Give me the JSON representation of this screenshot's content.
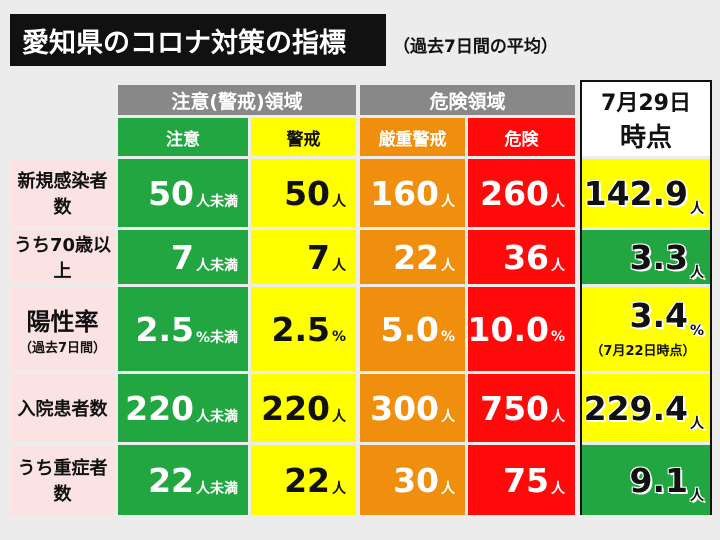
{
  "title": "愛知県のコロナ対策の指標",
  "subtitle": "（過去7日間の平均）",
  "header": {
    "group_caution": "注意(警戒)領域",
    "group_danger": "危険領域",
    "col_caution": "注意",
    "col_warning": "警戒",
    "col_severe": "厳重警戒",
    "col_danger": "危険",
    "date_line1": "7月29日",
    "date_line2": "時点"
  },
  "rows": [
    {
      "label": "新規感染者数",
      "caution": {
        "value": "50",
        "unit": "人未満"
      },
      "warning": {
        "value": "50",
        "unit": "人"
      },
      "severe": {
        "value": "160",
        "unit": "人"
      },
      "danger": {
        "value": "260",
        "unit": "人"
      },
      "current": {
        "value": "142.9",
        "unit": "人",
        "color": "#ffff00"
      }
    },
    {
      "label": "うち70歳以上",
      "caution": {
        "value": "7",
        "unit": "人未満"
      },
      "warning": {
        "value": "7",
        "unit": "人"
      },
      "severe": {
        "value": "22",
        "unit": "人"
      },
      "danger": {
        "value": "36",
        "unit": "人"
      },
      "current": {
        "value": "3.3",
        "unit": "人",
        "color": "#22a641"
      }
    },
    {
      "label": "陽性率",
      "sublabel": "（過去7日間）",
      "caution": {
        "value": "2.5",
        "unit": "%未満"
      },
      "warning": {
        "value": "2.5",
        "unit": "%"
      },
      "severe": {
        "value": "5.0",
        "unit": "%"
      },
      "danger": {
        "value": "10.0",
        "unit": "%"
      },
      "current": {
        "value": "3.4",
        "unit": "%",
        "note": "（7月22日時点）",
        "color": "#ffff00"
      }
    },
    {
      "label": "入院患者数",
      "caution": {
        "value": "220",
        "unit": "人未満"
      },
      "warning": {
        "value": "220",
        "unit": "人"
      },
      "severe": {
        "value": "300",
        "unit": "人"
      },
      "danger": {
        "value": "750",
        "unit": "人"
      },
      "current": {
        "value": "229.4",
        "unit": "人",
        "color": "#ffff00"
      }
    },
    {
      "label": "うち重症者数",
      "caution": {
        "value": "22",
        "unit": "人未満"
      },
      "warning": {
        "value": "22",
        "unit": "人"
      },
      "severe": {
        "value": "30",
        "unit": "人"
      },
      "danger": {
        "value": "75",
        "unit": "人"
      },
      "current": {
        "value": "9.1",
        "unit": "人",
        "color": "#22a641"
      }
    }
  ]
}
